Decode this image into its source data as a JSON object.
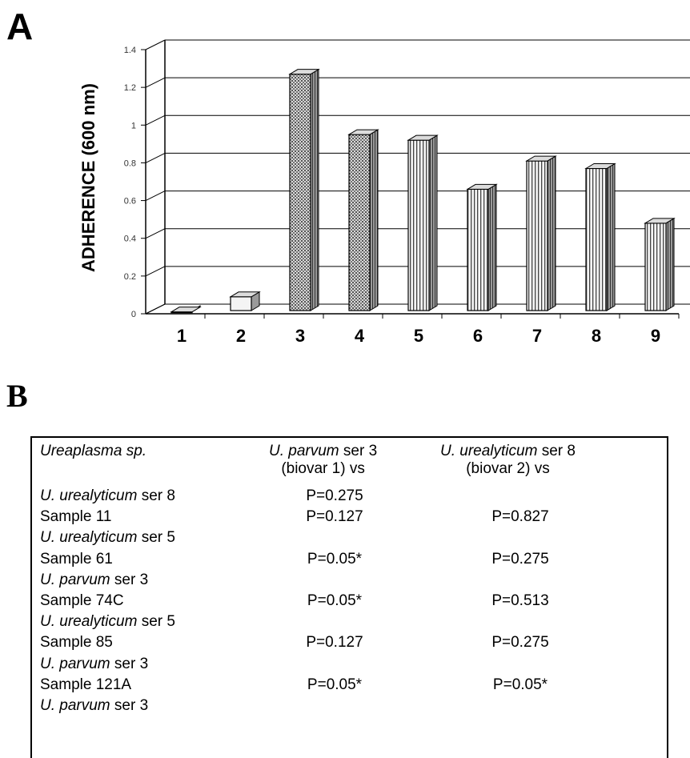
{
  "panel_a_label": "A",
  "panel_b_label": "B",
  "chart_data": {
    "type": "bar",
    "categories": [
      "1",
      "2",
      "3",
      "4",
      "5",
      "6",
      "7",
      "8",
      "9"
    ],
    "values": [
      0.01,
      0.09,
      1.27,
      0.95,
      0.92,
      0.66,
      0.81,
      0.77,
      0.48
    ],
    "ylabel": "ADHERENCE (600 nm)",
    "xlabel": "",
    "ylim": [
      0,
      1.4
    ],
    "yticks": [
      "0",
      "0.2",
      "0.4",
      "0.6",
      "0.8",
      "1",
      "1.2",
      "1.4"
    ],
    "grid": true,
    "style": "3d-bar"
  },
  "table": {
    "header": {
      "col1": "Ureaplasma sp.",
      "col2_italic": "U. parvum",
      "col2_rest": " ser 3",
      "col2_line2": "(biovar 1) vs",
      "col3_italic": "U. urealyticum",
      "col3_rest": " ser 8",
      "col3_line2": "(biovar 2) vs"
    },
    "rows": [
      {
        "italic": "U. urealyticum",
        "rest": " ser 8",
        "v1": "P=0.275",
        "v2": ""
      },
      {
        "italic": "",
        "rest": "Sample 11",
        "v1": "P=0.127",
        "v2": "P=0.827"
      },
      {
        "italic": "U. urealyticum",
        "rest": " ser 5",
        "v1": "",
        "v2": ""
      },
      {
        "italic": "",
        "rest": "Sample 61",
        "v1": "P=0.05*",
        "v2": "P=0.275"
      },
      {
        "italic": "U. parvum",
        "rest": " ser 3",
        "v1": "",
        "v2": ""
      },
      {
        "italic": "",
        "rest": "Sample 74C",
        "v1": "P=0.05*",
        "v2": "P=0.513"
      },
      {
        "italic": "U. urealyticum",
        "rest": " ser 5",
        "v1": "",
        "v2": ""
      },
      {
        "italic": "",
        "rest": "Sample 85",
        "v1": "P=0.127",
        "v2": "P=0.275"
      },
      {
        "italic": "U. parvum",
        "rest": " ser 3",
        "v1": "",
        "v2": ""
      },
      {
        "italic": "",
        "rest": "Sample 121A",
        "v1": "P=0.05*",
        "v2": "P=0.05*"
      },
      {
        "italic": "U. parvum",
        "rest": " ser 3",
        "v1": "",
        "v2": ""
      }
    ]
  }
}
